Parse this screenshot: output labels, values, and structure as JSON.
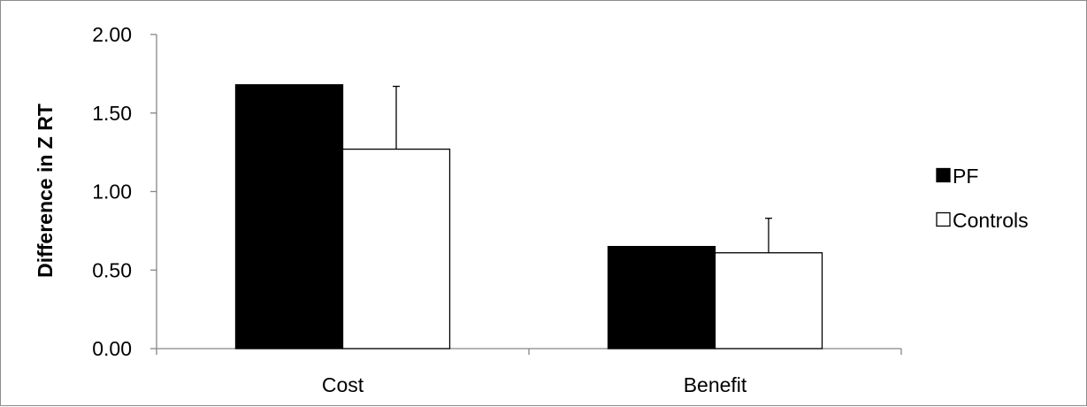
{
  "chart_data": {
    "type": "bar",
    "title": "",
    "xlabel": "",
    "ylabel": "Difference in Z RT",
    "categories": [
      "Cost",
      "Benefit"
    ],
    "ylim": [
      0,
      2
    ],
    "yticks": [
      "0.00",
      "0.50",
      "1.00",
      "1.50",
      "2.00"
    ],
    "ytick_values": [
      0,
      0.5,
      1,
      1.5,
      2
    ],
    "grid": false,
    "legend_position": "right",
    "series": [
      {
        "name": "PF",
        "color": "#000000",
        "values": [
          1.68,
          0.65
        ],
        "error_plus": [
          0,
          0
        ]
      },
      {
        "name": "Controls",
        "color": "#ffffff",
        "values": [
          1.27,
          0.61
        ],
        "error_plus": [
          0.4,
          0.22
        ]
      }
    ]
  }
}
